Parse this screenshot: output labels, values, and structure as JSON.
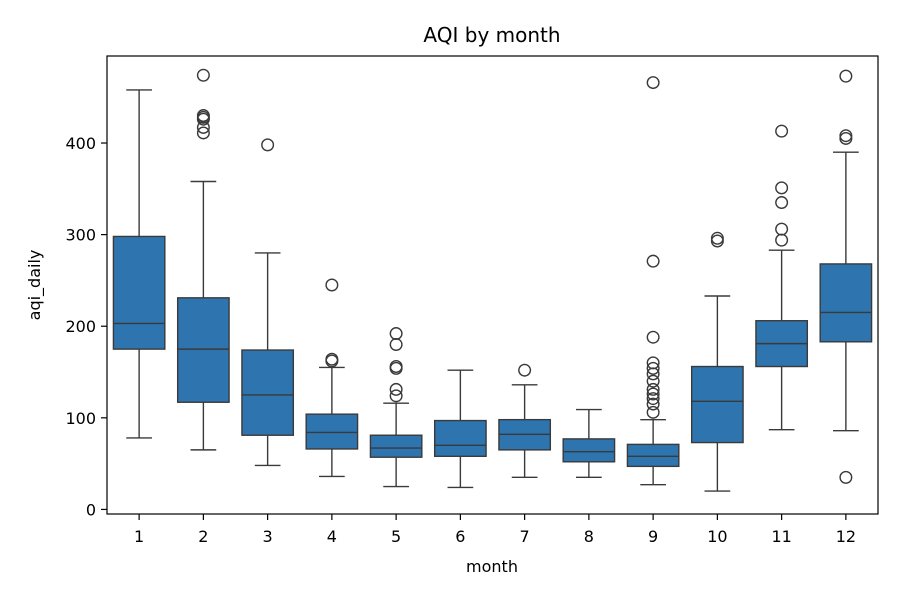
{
  "chart_data": {
    "type": "boxplot",
    "title": "AQI by month",
    "xlabel": "month",
    "ylabel": "aqi_daily",
    "ylim": [
      -5,
      495
    ],
    "yticks": [
      0,
      100,
      200,
      300,
      400
    ],
    "grid": false,
    "legend": "none",
    "box_color": "#2e75b0",
    "line_color": "#3a3a3a",
    "categories": [
      "1",
      "2",
      "3",
      "4",
      "5",
      "6",
      "7",
      "8",
      "9",
      "10",
      "11",
      "12"
    ],
    "boxes": [
      {
        "month": "1",
        "whisker_low": 78,
        "q1": 175,
        "median": 203,
        "q3": 298,
        "whisker_high": 458,
        "outliers": []
      },
      {
        "month": "2",
        "whisker_low": 65,
        "q1": 117,
        "median": 175,
        "q3": 231,
        "whisker_high": 358,
        "outliers": [
          411,
          417,
          426,
          428,
          430,
          474
        ]
      },
      {
        "month": "3",
        "whisker_low": 48,
        "q1": 81,
        "median": 125,
        "q3": 174,
        "whisker_high": 280,
        "outliers": [
          398
        ]
      },
      {
        "month": "4",
        "whisker_low": 36,
        "q1": 66,
        "median": 84,
        "q3": 104,
        "whisker_high": 155,
        "outliers": [
          162,
          164,
          245
        ]
      },
      {
        "month": "5",
        "whisker_low": 25,
        "q1": 57,
        "median": 67,
        "q3": 81,
        "whisker_high": 116,
        "outliers": [
          124,
          131,
          154,
          156,
          180,
          192
        ]
      },
      {
        "month": "6",
        "whisker_low": 24,
        "q1": 58,
        "median": 70,
        "q3": 97,
        "whisker_high": 152,
        "outliers": []
      },
      {
        "month": "7",
        "whisker_low": 35,
        "q1": 65,
        "median": 82,
        "q3": 98,
        "whisker_high": 136,
        "outliers": [
          152
        ]
      },
      {
        "month": "8",
        "whisker_low": 35,
        "q1": 52,
        "median": 63,
        "q3": 77,
        "whisker_high": 109,
        "outliers": []
      },
      {
        "month": "9",
        "whisker_low": 27,
        "q1": 47,
        "median": 58,
        "q3": 71,
        "whisker_high": 98,
        "outliers": [
          106,
          115,
          121,
          126,
          131,
          140,
          148,
          154,
          160,
          188,
          271,
          466
        ]
      },
      {
        "month": "10",
        "whisker_low": 20,
        "q1": 73,
        "median": 118,
        "q3": 156,
        "whisker_high": 233,
        "outliers": [
          293,
          296
        ]
      },
      {
        "month": "11",
        "whisker_low": 87,
        "q1": 156,
        "median": 181,
        "q3": 206,
        "whisker_high": 283,
        "outliers": [
          294,
          306,
          335,
          351,
          413
        ]
      },
      {
        "month": "12",
        "whisker_low": 86,
        "q1": 183,
        "median": 215,
        "q3": 268,
        "whisker_high": 390,
        "outliers": [
          35,
          405,
          408,
          473
        ]
      }
    ]
  }
}
